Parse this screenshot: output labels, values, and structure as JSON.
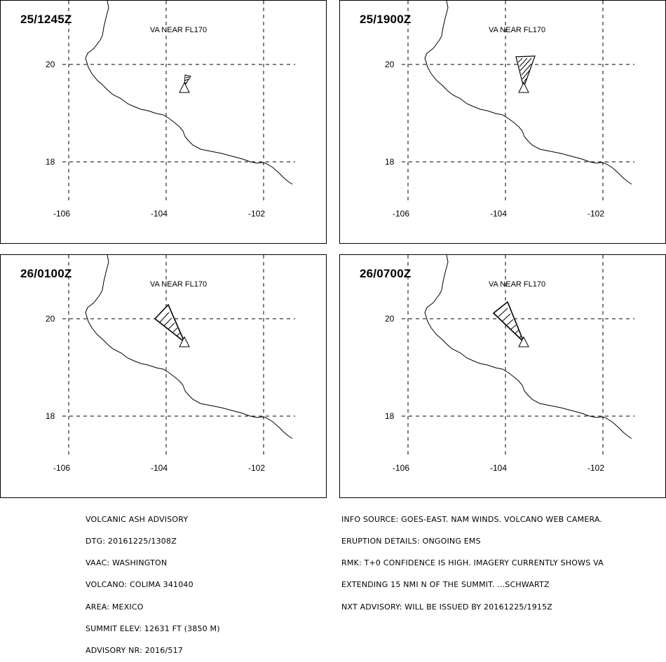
{
  "panels": [
    {
      "time": "25/1245Z",
      "level": "VA NEAR FL170"
    },
    {
      "time": "25/1900Z",
      "level": "VA NEAR FL170"
    },
    {
      "time": "26/0100Z",
      "level": "VA NEAR FL170"
    },
    {
      "time": "26/0700Z",
      "level": "VA NEAR FL170"
    }
  ],
  "axes": {
    "lat_labels": [
      "20",
      "18"
    ],
    "lon_labels": [
      "-106",
      "-104",
      "-102"
    ]
  },
  "advisory_left": [
    "VOLCANIC ASH ADVISORY",
    "DTG: 20161225/1308Z",
    "VAAC: WASHINGTON",
    "VOLCANO: COLIMA 341040",
    "AREA: MEXICO",
    "SUMMIT ELEV: 12631 FT (3850 M)",
    "ADVISORY NR: 2016/517"
  ],
  "advisory_right": [
    "INFO SOURCE: GOES-EAST. NAM WINDS. VOLCANO WEB CAMERA.",
    "ERUPTION DETAILS: ONGOING EMS",
    "RMK: T+0 CONFIDENCE IS HIGH. IMAGERY CURRENTLY SHOWS VA",
    "EXTENDING 15 NMI N OF THE SUMMIT. ...SCHWARTZ",
    "NXT ADVISORY: WILL BE ISSUED BY 20161225/1915Z"
  ]
}
